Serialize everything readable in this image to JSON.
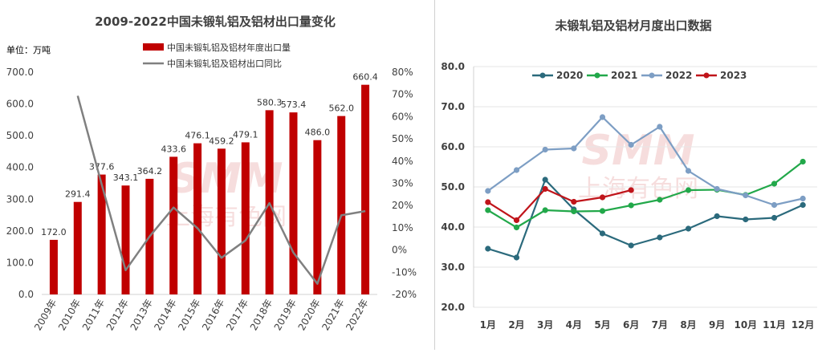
{
  "chart_data": [
    {
      "type": "bar+line",
      "title": "2009-2022中国未锻轧铝及铝材出口量变化",
      "unit_label": "单位：万吨",
      "legend": [
        "中国未锻轧铝及铝材年度出口量",
        "中国未锻轧铝及铝材出口同比"
      ],
      "categories": [
        "2009年",
        "2010年",
        "2011年",
        "2012年",
        "2013年",
        "2014年",
        "2015年",
        "2016年",
        "2017年",
        "2018年",
        "2019年",
        "2020年",
        "2021年",
        "2022年"
      ],
      "bar_values": [
        172.0,
        291.4,
        377.6,
        343.1,
        364.2,
        433.6,
        476.1,
        459.2,
        479.1,
        580.3,
        573.4,
        486.0,
        562.0,
        660.4
      ],
      "bar_labels": [
        "172.0",
        "291.4",
        "377.6",
        "343.1",
        "364.2",
        "433.6",
        "476.1",
        "459.2",
        "479.1",
        "580.3",
        "573.4",
        "486.0",
        "562.0",
        "660.4"
      ],
      "yoy_values": [
        null,
        69.4,
        29.6,
        -9.1,
        6.1,
        19.1,
        9.8,
        -3.5,
        4.3,
        21.1,
        -1.2,
        -15.2,
        15.6,
        17.5
      ],
      "y_left": [
        0,
        700
      ],
      "y_left_ticks": [
        "0.0",
        "100.0",
        "200.0",
        "300.0",
        "400.0",
        "500.0",
        "600.0",
        "700.0"
      ],
      "y_right": [
        -20,
        80
      ],
      "y_right_ticks": [
        "-20%",
        "-10%",
        "0%",
        "10%",
        "20%",
        "30%",
        "40%",
        "50%",
        "60%",
        "70%",
        "80%"
      ],
      "bar_color": "#c00000",
      "line_color": "#808080"
    },
    {
      "type": "line",
      "title": "未锻轧铝及铝材月度出口数据",
      "categories": [
        "1月",
        "2月",
        "3月",
        "4月",
        "5月",
        "6月",
        "7月",
        "8月",
        "9月",
        "10月",
        "11月",
        "12月"
      ],
      "y_range": [
        20,
        80
      ],
      "y_ticks": [
        "20.0",
        "30.0",
        "40.0",
        "50.0",
        "60.0",
        "70.0",
        "80.0"
      ],
      "series": [
        {
          "name": "2020",
          "color": "#2b6a7c",
          "values": [
            34.6,
            32.4,
            51.8,
            44.4,
            38.4,
            35.4,
            37.4,
            39.6,
            42.7,
            41.9,
            42.3,
            45.5
          ]
        },
        {
          "name": "2021",
          "color": "#22a84a",
          "values": [
            44.2,
            39.9,
            44.2,
            43.9,
            44.0,
            45.4,
            46.8,
            49.2,
            49.3,
            48.0,
            50.8,
            56.3
          ]
        },
        {
          "name": "2022",
          "color": "#7d9ec4",
          "values": [
            49.0,
            54.2,
            59.3,
            59.6,
            67.4,
            60.5,
            65.0,
            54.0,
            49.5,
            47.9,
            45.5,
            47.1
          ]
        },
        {
          "name": "2023",
          "color": "#c0141a",
          "values": [
            46.2,
            41.7,
            49.5,
            46.3,
            47.4,
            49.2,
            null,
            null,
            null,
            null,
            null,
            null
          ]
        }
      ]
    }
  ],
  "watermark": {
    "brand": "SMM",
    "cn": "上海有色网"
  }
}
